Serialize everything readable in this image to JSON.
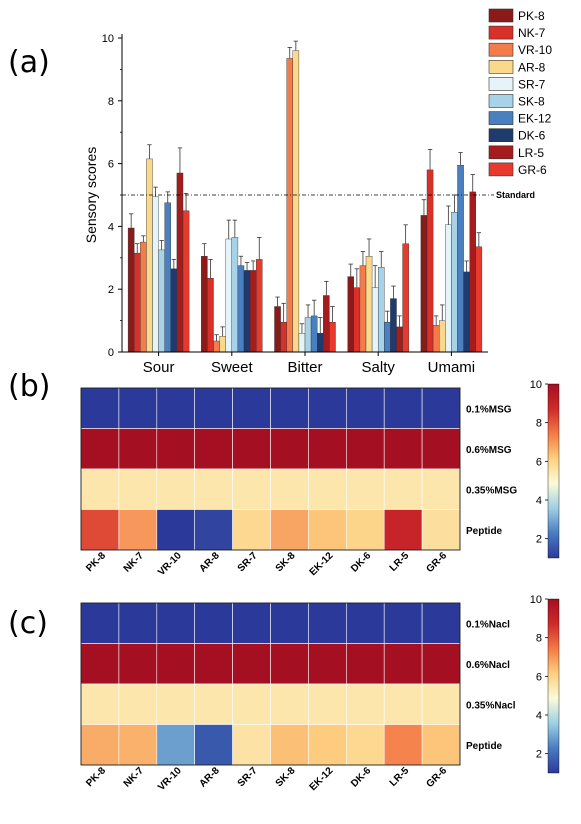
{
  "panels": {
    "a_label": "(a)",
    "b_label": "(b)",
    "c_label": "(c)"
  },
  "colors": {
    "PK-8": "#8b1a1a",
    "NK-7": "#d9302a",
    "VR-10": "#f47c4a",
    "AR-8": "#fcd98a",
    "SR-7": "#e4f4f8",
    "SK-8": "#a8d2e8",
    "EK-12": "#4a7fc0",
    "DK-6": "#1e3a6e",
    "LR-5": "#a61c1c",
    "GR-6": "#e8392d"
  },
  "colorscale": [
    "#2b3a9a",
    "#4a7cc0",
    "#9fd0e4",
    "#fbfbd8",
    "#fdd080",
    "#f47a48",
    "#cf2a2a",
    "#a50f22"
  ],
  "chart_data": [
    {
      "type": "bar",
      "panel": "(a)",
      "ylabel": "Sensory scores",
      "xlabel": "",
      "ylim": [
        0,
        10
      ],
      "yticks": [
        "0",
        "2",
        "4",
        "6",
        "8",
        "10"
      ],
      "categories": [
        "Sour",
        "Sweet",
        "Bitter",
        "Salty",
        "Umami"
      ],
      "reference_line": {
        "label": "Standard",
        "value": 5
      },
      "legend_position": "top-right",
      "series": [
        {
          "name": "PK-8",
          "values": [
            3.95,
            3.05,
            1.45,
            2.4,
            4.35
          ],
          "errors": [
            0.45,
            0.4,
            0.3,
            0.4,
            0.5
          ]
        },
        {
          "name": "NK-7",
          "values": [
            3.15,
            2.35,
            0.95,
            2.05,
            5.8
          ],
          "errors": [
            0.3,
            0.6,
            0.6,
            0.6,
            0.65
          ]
        },
        {
          "name": "VR-10",
          "values": [
            3.5,
            0.35,
            9.35,
            2.75,
            0.85
          ],
          "errors": [
            0.2,
            0.2,
            0.35,
            0.45,
            0.3
          ]
        },
        {
          "name": "AR-8",
          "values": [
            6.15,
            0.5,
            9.6,
            3.05,
            1.0
          ],
          "errors": [
            0.45,
            0.3,
            0.3,
            0.55,
            0.5
          ]
        },
        {
          "name": "SR-7",
          "values": [
            4.95,
            3.6,
            0.6,
            2.05,
            4.05
          ],
          "errors": [
            0.3,
            0.6,
            0.3,
            0.7,
            0.6
          ]
        },
        {
          "name": "SK-8",
          "values": [
            3.25,
            3.65,
            1.1,
            2.7,
            4.45
          ],
          "errors": [
            0.3,
            0.55,
            0.4,
            0.5,
            0.55
          ]
        },
        {
          "name": "EK-12",
          "values": [
            4.75,
            2.75,
            1.15,
            0.95,
            5.95
          ],
          "errors": [
            0.35,
            0.3,
            0.5,
            0.35,
            0.4
          ]
        },
        {
          "name": "DK-6",
          "values": [
            2.65,
            2.6,
            0.6,
            1.7,
            2.55
          ],
          "errors": [
            0.3,
            0.25,
            0.5,
            0.4,
            0.35
          ]
        },
        {
          "name": "LR-5",
          "values": [
            5.7,
            2.6,
            1.8,
            0.8,
            5.1
          ],
          "errors": [
            0.8,
            0.3,
            0.45,
            0.35,
            0.55
          ]
        },
        {
          "name": "GR-6",
          "values": [
            4.5,
            2.95,
            0.95,
            3.45,
            3.35
          ],
          "errors": [
            0.55,
            0.7,
            0.5,
            0.6,
            0.45
          ]
        }
      ]
    },
    {
      "type": "heatmap",
      "panel": "(b)",
      "rows": [
        "0.1%MSG",
        "0.6%MSG",
        "0.35%MSG",
        "Peptide"
      ],
      "columns": [
        "PK-8",
        "NK-7",
        "VR-10",
        "AR-8",
        "SR-7",
        "SK-8",
        "EK-12",
        "DK-6",
        "LR-5",
        "GR-6"
      ],
      "values": [
        [
          1,
          1,
          1,
          1,
          1,
          1,
          1,
          1,
          1,
          1
        ],
        [
          10,
          10,
          10,
          10,
          10,
          10,
          10,
          10,
          10,
          10
        ],
        [
          5.5,
          5.5,
          5.5,
          5.5,
          5.5,
          5.5,
          5.5,
          5.5,
          5.5,
          5.5
        ],
        [
          8.2,
          7.0,
          1.0,
          1.2,
          5.9,
          6.8,
          6.3,
          6.0,
          9.0,
          5.7
        ]
      ],
      "colorbar": {
        "min": 1,
        "max": 10,
        "ticks": [
          "2",
          "4",
          "6",
          "8",
          "10"
        ]
      }
    },
    {
      "type": "heatmap",
      "panel": "(c)",
      "rows": [
        "0.1%Nacl",
        "0.6%Nacl",
        "0.35%Nacl",
        "Peptide"
      ],
      "columns": [
        "PK-8",
        "NK-7",
        "VR-10",
        "AR-8",
        "SR-7",
        "SK-8",
        "EK-12",
        "DK-6",
        "LR-5",
        "GR-6"
      ],
      "values": [
        [
          1,
          1,
          1,
          1,
          1,
          1,
          1,
          1,
          1,
          1
        ],
        [
          10,
          10,
          10,
          10,
          10,
          10,
          10,
          10,
          10,
          10
        ],
        [
          5.5,
          5.5,
          5.5,
          5.5,
          5.5,
          5.5,
          5.5,
          5.5,
          5.5,
          5.5
        ],
        [
          6.7,
          6.6,
          2.8,
          1.6,
          5.6,
          6.4,
          6.2,
          5.9,
          7.3,
          6.3
        ]
      ],
      "colorbar": {
        "min": 1,
        "max": 10,
        "ticks": [
          "2",
          "4",
          "6",
          "8",
          "10"
        ]
      }
    }
  ]
}
